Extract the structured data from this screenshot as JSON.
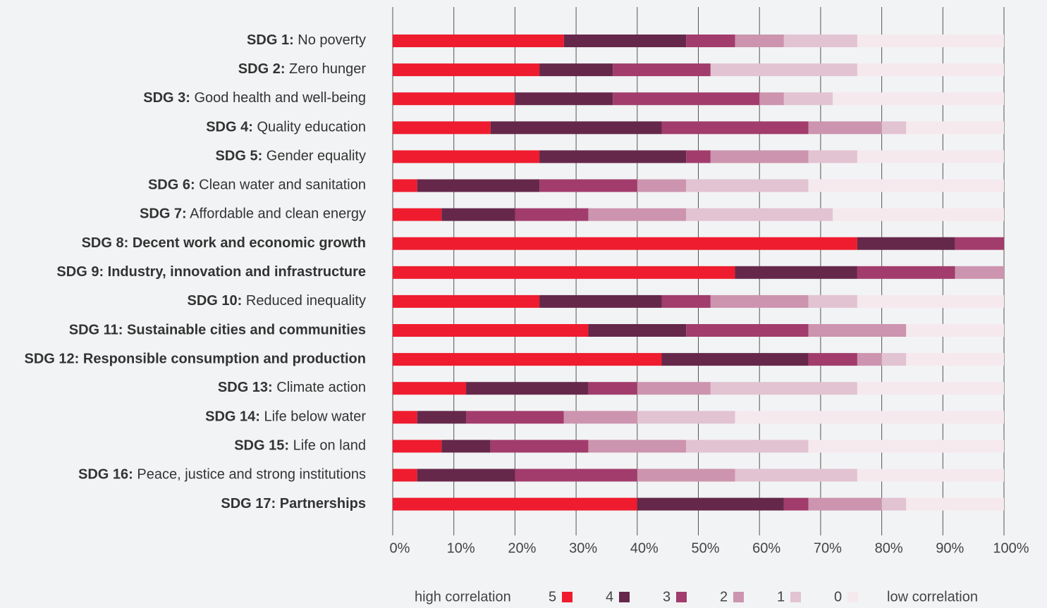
{
  "chart_data": {
    "type": "stacked_bar_horizontal",
    "categories": [
      "SDG 1: No poverty",
      "SDG 2: Zero hunger",
      "SDG 3: Good health and well-being",
      "SDG 4: Quality education",
      "SDG 5: Gender equality",
      "SDG 6: Clean water and sanitation",
      "SDG 7: Affordable and clean energy",
      "SDG 8: Decent work and economic growth",
      "SDG 9: Industry, innovation and infrastructure",
      "SDG 10: Reduced inequality",
      "SDG 11: Sustainable cities and communities",
      "SDG 12: Responsible consumption and production",
      "SDG 13: Climate action",
      "SDG 14: Life below water",
      "SDG 15: Life on land",
      "SDG 16: Peace, justice and strong institutions",
      "SDG 17: Partnerships"
    ],
    "highlight": [
      false,
      false,
      false,
      false,
      false,
      false,
      false,
      true,
      true,
      false,
      true,
      true,
      false,
      false,
      false,
      false,
      true
    ],
    "series": [
      {
        "name": "5",
        "color": "#ee1c2e",
        "values": [
          28,
          24,
          20,
          16,
          24,
          4,
          8,
          76,
          56,
          24,
          32,
          44,
          12,
          4,
          8,
          4,
          40
        ]
      },
      {
        "name": "4",
        "color": "#65284a",
        "values": [
          20,
          12,
          16,
          28,
          24,
          20,
          12,
          16,
          20,
          20,
          16,
          24,
          20,
          8,
          8,
          16,
          24
        ]
      },
      {
        "name": "3",
        "color": "#a23c6c",
        "values": [
          8,
          16,
          24,
          24,
          4,
          16,
          12,
          8,
          16,
          8,
          20,
          8,
          8,
          16,
          16,
          20,
          4
        ]
      },
      {
        "name": "2",
        "color": "#cc94ae",
        "values": [
          8,
          0,
          4,
          12,
          16,
          8,
          16,
          0,
          8,
          16,
          16,
          4,
          12,
          12,
          16,
          16,
          12
        ]
      },
      {
        "name": "1",
        "color": "#e2c3d1",
        "values": [
          12,
          24,
          8,
          4,
          8,
          20,
          24,
          0,
          0,
          8,
          0,
          4,
          24,
          16,
          20,
          20,
          4
        ]
      },
      {
        "name": "0",
        "color": "#f5e9ee",
        "values": [
          24,
          24,
          28,
          16,
          24,
          32,
          28,
          0,
          0,
          24,
          16,
          16,
          24,
          44,
          32,
          24,
          16
        ]
      }
    ],
    "xlim": [
      0,
      100
    ],
    "xticks": [
      {
        "value": 0,
        "label": "0%"
      },
      {
        "value": 10,
        "label": "10%"
      },
      {
        "value": 20,
        "label": "20%"
      },
      {
        "value": 30,
        "label": "30%"
      },
      {
        "value": 40,
        "label": "40%"
      },
      {
        "value": 50,
        "label": "50%"
      },
      {
        "value": 60,
        "label": "60%"
      },
      {
        "value": 70,
        "label": "70%"
      },
      {
        "value": 80,
        "label": "80%"
      },
      {
        "value": 90,
        "label": "90%"
      },
      {
        "value": 100,
        "label": "100%"
      }
    ],
    "grid": true,
    "legend": {
      "high": "high correlation",
      "low": "low correlation"
    }
  }
}
